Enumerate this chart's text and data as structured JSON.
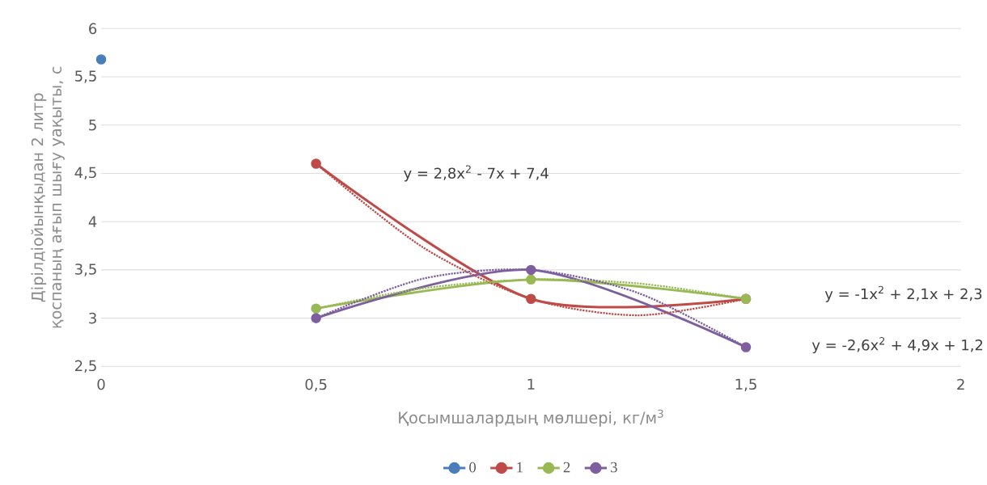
{
  "chart_data": {
    "type": "line",
    "xlabel": "Қосымшалардың мөлшері, кг/м$^{3}$",
    "ylabel": "Дірілдіойынқыдан  2 литр қоспаның ағып шығу уақыты, с",
    "x": [
      0.5,
      1,
      1.5
    ],
    "series": [
      {
        "name": "0",
        "color": "#4a7ebb",
        "x": [
          0
        ],
        "values": [
          5.68
        ]
      },
      {
        "name": "1",
        "color": "#be4b48",
        "values": [
          4.6,
          3.2,
          3.2
        ]
      },
      {
        "name": "2",
        "color": "#98b954",
        "values": [
          3.1,
          3.4,
          3.2
        ]
      },
      {
        "name": "3",
        "color": "#7d5fa0",
        "values": [
          3.0,
          3.5,
          2.7
        ]
      },
      {
        "color": "#be4b48",
        "line_style": "dotted",
        "marker": "none",
        "x": [
          0.5,
          0.75,
          1,
          1.25,
          1.5
        ],
        "values": [
          4.6,
          3.73,
          3.2,
          3.03,
          3.2
        ]
      },
      {
        "color": "#98b954",
        "line_style": "dotted",
        "marker": "none",
        "x": [
          0.5,
          0.75,
          1,
          1.25,
          1.5
        ],
        "values": [
          3.1,
          3.31,
          3.4,
          3.36,
          3.2
        ]
      },
      {
        "color": "#7d5fa0",
        "line_style": "dotted",
        "marker": "none",
        "x": [
          0.5,
          0.75,
          1,
          1.25,
          1.5
        ],
        "values": [
          3.0,
          3.41,
          3.5,
          3.26,
          2.7
        ]
      }
    ],
    "annotations": [
      "y = 2,8x$^{2}$ - 7x + 7,4",
      "y = -1x$^{2}$ + 2,1x + 2,3",
      "y = -2,6x$^{2}$ + 4,9x + 1,2"
    ],
    "xlim": [
      0,
      2
    ],
    "xticks": [
      0,
      {
        "value": 0.5,
        "label": "0,5"
      },
      1,
      {
        "value": 1.5,
        "label": "1,5"
      },
      2
    ],
    "ylim": [
      2.5,
      6
    ],
    "yticks": [
      {
        "value": 2.5,
        "label": "2,5"
      },
      3,
      {
        "value": 3.5,
        "label": "3,5"
      },
      4,
      {
        "value": 4.5,
        "label": "4,5"
      },
      5,
      {
        "value": 5.5,
        "label": "5,5"
      },
      6
    ],
    "grid": "y",
    "legend": "bottom",
    "marker": "circle",
    "line_style": "solid"
  }
}
